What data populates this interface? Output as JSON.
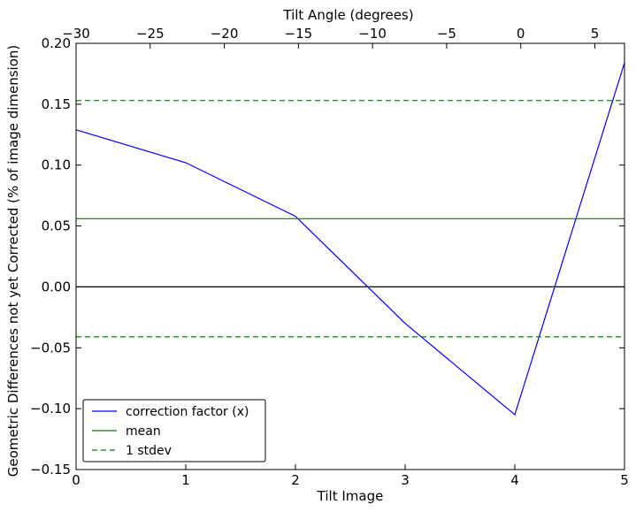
{
  "chart_data": {
    "type": "line",
    "xlabel": "Tilt Image",
    "ylabel": "Geometric Differences not yet Corrected (% of image dimension)",
    "x2label": "Tilt Angle (degrees)",
    "xlim": [
      0,
      5
    ],
    "ylim": [
      -0.15,
      0.2
    ],
    "x2lim": [
      -30,
      7
    ],
    "x_ticks": [
      "0",
      "1",
      "2",
      "3",
      "4",
      "5"
    ],
    "x_tick_values": [
      0,
      1,
      2,
      3,
      4,
      5
    ],
    "y_ticks": [
      "−0.15",
      "−0.10",
      "−0.05",
      "0.00",
      "0.05",
      "0.10",
      "0.15",
      "0.20"
    ],
    "y_tick_values": [
      -0.15,
      -0.1,
      -0.05,
      0.0,
      0.05,
      0.1,
      0.15,
      0.2
    ],
    "x2_ticks": [
      "−30",
      "−25",
      "−20",
      "−15",
      "−10",
      "−5",
      "0",
      "5"
    ],
    "x2_tick_values": [
      -30,
      -25,
      -20,
      -15,
      -10,
      -5,
      0,
      5
    ],
    "grid": false,
    "legend_position": "lower-left",
    "series": [
      {
        "name": "correction factor (x)",
        "color": "#0000ff",
        "style": "solid",
        "x": [
          0,
          1,
          2,
          3,
          4,
          5
        ],
        "y": [
          0.129,
          0.102,
          0.058,
          -0.03,
          -0.105,
          0.184
        ]
      },
      {
        "name": "mean",
        "color": "#008000",
        "style": "solid",
        "x": [
          0,
          5
        ],
        "y": [
          0.056,
          0.056
        ]
      },
      {
        "name": "1 stdev",
        "color": "#008000",
        "style": "dashed",
        "x": [
          0,
          5
        ],
        "y": [
          0.153,
          0.153
        ]
      },
      {
        "name": "",
        "color": "#008000",
        "style": "dashed",
        "x": [
          0,
          5
        ],
        "y": [
          -0.041,
          -0.041
        ]
      },
      {
        "name": "",
        "color": "#000000",
        "style": "solid",
        "x": [
          0,
          5
        ],
        "y": [
          0.0,
          0.0
        ]
      }
    ]
  }
}
